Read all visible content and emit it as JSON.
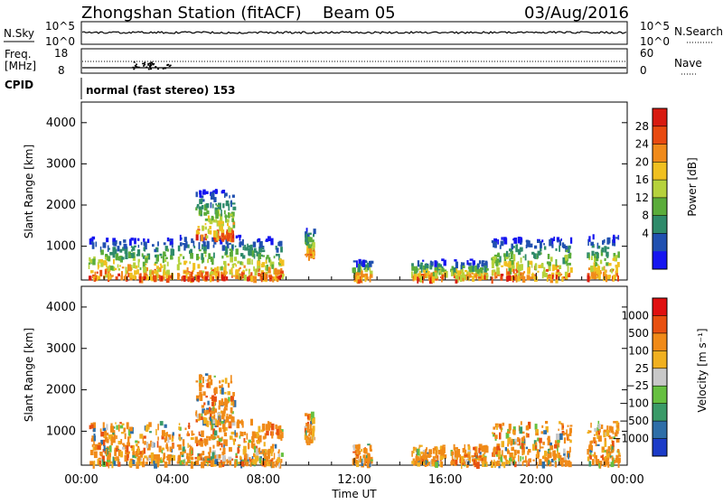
{
  "header": {
    "station": "Zhongshan Station (fitACF)",
    "beam": "Beam 05",
    "date": "03/Aug/2016"
  },
  "top_panels": {
    "nsky_label": "N.Sky",
    "nsky_ticks": [
      "10^5",
      "10^0"
    ],
    "nsearch_label": "N.Search",
    "freq_label_1": "Freq.",
    "freq_label_2": "[MHz]",
    "freq_ticks": [
      "18",
      "8"
    ],
    "nave_label": "Nave",
    "nave_ticks": [
      "60",
      "0"
    ],
    "cpid_label": "CPID",
    "cpid_text": "normal (fast stereo) 153"
  },
  "chart_data": [
    {
      "type": "heatmap",
      "name": "power",
      "ylabel": "Slant Range [km]",
      "yticks": [
        "4000",
        "3000",
        "2000",
        "1000"
      ],
      "ylim": [
        180,
        4500
      ],
      "xlim": [
        0,
        24
      ],
      "colorbar_label": "Power [dB]",
      "colorbar_ticks": [
        "28",
        "24",
        "20",
        "16",
        "12",
        "8",
        "4"
      ],
      "colorscale": [
        "#1515f0",
        "#2050b0",
        "#2e8a6a",
        "#5aac3a",
        "#b6d23c",
        "#f0c020",
        "#f08a1a",
        "#e84a10",
        "#d81a10"
      ],
      "echo_regions": [
        {
          "t": [
            0.3,
            4.0
          ],
          "r": [
            260,
            1250
          ]
        },
        {
          "t": [
            4.2,
            7.5
          ],
          "r": [
            260,
            1300
          ]
        },
        {
          "t": [
            5.0,
            6.7
          ],
          "r": [
            1250,
            2400
          ]
        },
        {
          "t": [
            7.5,
            8.8
          ],
          "r": [
            260,
            1250
          ]
        },
        {
          "t": [
            9.8,
            10.2
          ],
          "r": [
            800,
            1500
          ]
        },
        {
          "t": [
            11.9,
            12.7
          ],
          "r": [
            260,
            700
          ]
        },
        {
          "t": [
            14.5,
            16.0
          ],
          "r": [
            260,
            700
          ]
        },
        {
          "t": [
            16.2,
            17.8
          ],
          "r": [
            260,
            700
          ]
        },
        {
          "t": [
            18.0,
            21.5
          ],
          "r": [
            260,
            1250
          ]
        },
        {
          "t": [
            22.2,
            23.6
          ],
          "r": [
            260,
            1300
          ]
        }
      ]
    },
    {
      "type": "heatmap",
      "name": "velocity",
      "ylabel": "Slant Range [km]",
      "yticks": [
        "4000",
        "3000",
        "2000",
        "1000"
      ],
      "ylim": [
        180,
        4500
      ],
      "xlim": [
        0,
        24
      ],
      "xlabel": "Time UT",
      "xticks": [
        "00:00",
        "04:00",
        "08:00",
        "12:00",
        "16:00",
        "20:00",
        "00:00"
      ],
      "colorbar_label": "Velocity [m s⁻¹]",
      "colorbar_ticks": [
        "1000",
        "500",
        "100",
        "25",
        "−25",
        "−100",
        "−500",
        "−1000"
      ],
      "colorscale": [
        "#1c3cc8",
        "#2e6ea8",
        "#3a9a68",
        "#66c040",
        "#c8c8c8",
        "#f0b020",
        "#f08a18",
        "#e85010",
        "#e01010"
      ],
      "echo_regions": [
        {
          "t": [
            0.3,
            4.0
          ],
          "r": [
            260,
            1250
          ]
        },
        {
          "t": [
            4.2,
            7.5
          ],
          "r": [
            260,
            1300
          ]
        },
        {
          "t": [
            5.0,
            6.7
          ],
          "r": [
            1250,
            2400
          ]
        },
        {
          "t": [
            7.5,
            8.8
          ],
          "r": [
            260,
            1250
          ]
        },
        {
          "t": [
            9.8,
            10.2
          ],
          "r": [
            800,
            1500
          ]
        },
        {
          "t": [
            11.9,
            12.7
          ],
          "r": [
            260,
            700
          ]
        },
        {
          "t": [
            14.5,
            16.0
          ],
          "r": [
            260,
            700
          ]
        },
        {
          "t": [
            16.2,
            17.8
          ],
          "r": [
            260,
            700
          ]
        },
        {
          "t": [
            18.0,
            21.5
          ],
          "r": [
            260,
            1250
          ]
        },
        {
          "t": [
            22.2,
            23.6
          ],
          "r": [
            260,
            1300
          ]
        }
      ]
    }
  ]
}
